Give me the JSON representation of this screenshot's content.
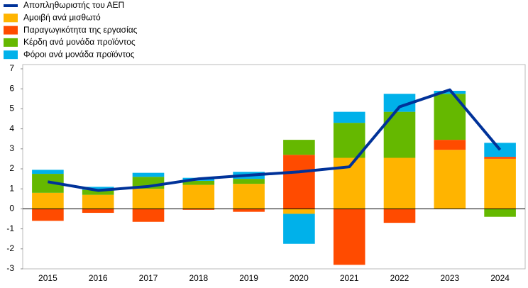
{
  "chart_data": {
    "type": "bar",
    "stacked": true,
    "categories": [
      "2015",
      "2016",
      "2017",
      "2018",
      "2019",
      "2020",
      "2021",
      "2022",
      "2023",
      "2024"
    ],
    "series": [
      {
        "name": "Αποπληθωριστής του ΑΕΠ",
        "type": "line",
        "color": "#003299",
        "values": [
          1.35,
          0.92,
          1.12,
          1.5,
          1.68,
          1.85,
          2.1,
          5.1,
          5.95,
          2.95
        ]
      },
      {
        "name": "Αμοιβή ανά μισθωτό",
        "color": "#ffb400",
        "values": [
          0.8,
          0.7,
          1.0,
          1.2,
          1.25,
          -0.25,
          2.55,
          2.55,
          2.95,
          2.5
        ]
      },
      {
        "name": "Παραγωγικότητα της εργασίας",
        "color": "#ff4b00",
        "values": [
          -0.6,
          -0.2,
          -0.65,
          -0.05,
          -0.15,
          2.7,
          -2.8,
          -0.7,
          0.5,
          0.1
        ]
      },
      {
        "name": "Κέρδη ανά μονάδα προϊόντος",
        "color": "#65b800",
        "values": [
          0.95,
          0.25,
          0.6,
          0.2,
          0.25,
          0.75,
          1.75,
          2.3,
          2.3,
          -0.4
        ]
      },
      {
        "name": "Φόροι ανά μονάδα προϊόντος",
        "color": "#00b1ea",
        "values": [
          0.2,
          0.15,
          0.2,
          0.15,
          0.35,
          -1.5,
          0.55,
          0.9,
          0.15,
          0.7
        ]
      }
    ],
    "ylim": [
      -3,
      7
    ],
    "yticks": [
      -3,
      -2,
      -1,
      0,
      1,
      2,
      3,
      4,
      5,
      6,
      7
    ],
    "grid": false
  }
}
